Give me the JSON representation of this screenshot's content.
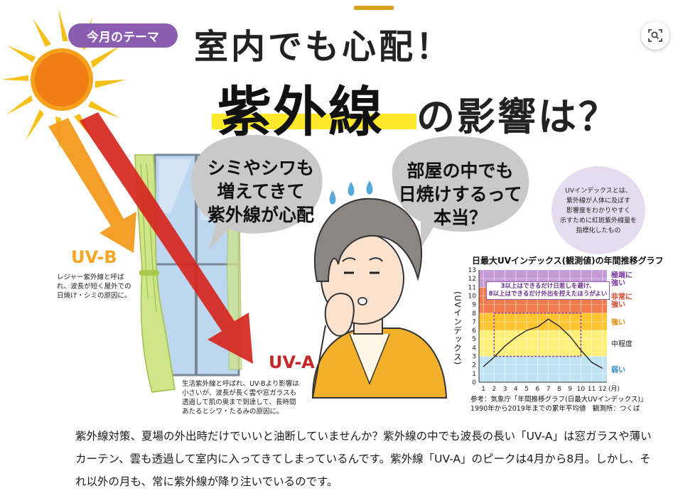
{
  "theme_tag": "今月のテーマ",
  "headline": {
    "line1": "室内でも心配！",
    "line2_main": "紫外線",
    "line2_rest": "の影響は？"
  },
  "bubbles": {
    "left": "シミやシワも\n増えてきて\n紫外線が心配",
    "right": "部屋の中でも\n日焼けするって\n本当？"
  },
  "uvb": {
    "title": "UV-B",
    "description": "レジャー紫外線と呼ば\nれ、波長が短く屋外での\n日焼け・シミの原因に。"
  },
  "uva": {
    "title": "UV-A",
    "description": "生活紫外線と呼ばれ、UV-Bより影響は\n小さいが、波長が長く雲や窓ガラスも\n透過して肌の奥まで到達して、長時間\nあたるとシワ・たるみの原因に。"
  },
  "uv_note": "UVインデックスとは、\n紫外線が人体に及ぼす\n影響度をわかりやすく\n示すために紅斑紫外線量を\n指標化したもの",
  "chart_data": {
    "type": "line",
    "title": "日最大UVインデックス(観測値)の年間推移グラフ",
    "ylabel": "(UVインデックス)",
    "xlabel": "(月)",
    "x": [
      1,
      2,
      3,
      4,
      5,
      6,
      7,
      8,
      9,
      10,
      11,
      12
    ],
    "y": [
      1.8,
      2.9,
      4.2,
      5.2,
      6.0,
      6.4,
      7.3,
      6.5,
      5.3,
      3.7,
      2.3,
      1.6
    ],
    "xlim": [
      0.6,
      12.4
    ],
    "ylim": [
      0,
      13
    ],
    "y_ticks": [
      0,
      1,
      2,
      3,
      4,
      5,
      6,
      7,
      8,
      9,
      10,
      11,
      12,
      13
    ],
    "x_ticks": [
      "1",
      "2",
      "3",
      "4",
      "5",
      "6",
      "7",
      "8",
      "9",
      "10",
      "11",
      "12"
    ],
    "bands": [
      {
        "label": "弱い",
        "from": 0,
        "to": 3,
        "color": "#bfe3f2",
        "text_color": "#2a8bc7"
      },
      {
        "label": "中程度",
        "from": 3,
        "to": 6,
        "color": "#fff07a",
        "text_color": "#222222"
      },
      {
        "label": "強い",
        "from": 6,
        "to": 8,
        "color": "#ffc531",
        "text_color": "#e08a00"
      },
      {
        "label": "非常に\n強い",
        "from": 8,
        "to": 11,
        "color": "#f07b4c",
        "text_color": "#d8432b"
      },
      {
        "label": "極端に\n強い",
        "from": 11,
        "to": 13,
        "color": "#c59bd6",
        "text_color": "#7b3aa1"
      }
    ],
    "annotation": "3以上はできるだけ日差しを避け、\n8以上はできるだけ外出を控えたほうがよい",
    "highlight_months": [
      2,
      10
    ],
    "source": "参考：気象庁「年間推移グラフ(日最大UVインデックス)」\n1990年から2019年までの累年平均値　観測所：つくば"
  },
  "body_text": "紫外線対策、夏場の外出時だけでいいと油断していませんか？紫外線の中でも波長の長い「UV-A」は窓ガラスや薄いカーテン、雲も透過して室内に入ってきてしまっているんです。紫外線「UV-A」のピークは4月から8月。しかし、それ以外の月も、常に紫外線が降り注いでいるのです。",
  "colors": {
    "accent_purple": "#8a5db0",
    "headline_highlight": "#ffe92a",
    "uvb": "#f5a623",
    "uva": "#c62828",
    "sun": "#f08a1c",
    "curtain": "#c6e07a"
  },
  "icons": {
    "camera": "camera-search-icon"
  }
}
